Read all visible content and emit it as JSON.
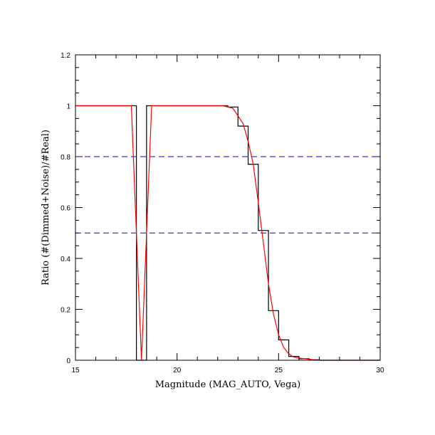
{
  "chart_data": {
    "type": "line",
    "title": "",
    "xlabel": "Magnitude (MAG_AUTO, Vega)",
    "ylabel": "Ratio (#(Dimmed+Noise)/#Real)",
    "xlim": [
      15,
      30
    ],
    "ylim": [
      0,
      1.2
    ],
    "x_ticks": [
      15,
      20,
      25,
      30
    ],
    "x_tick_labels": [
      "15",
      "20",
      "25",
      "30"
    ],
    "y_ticks": [
      0,
      0.2,
      0.4,
      0.6,
      0.8,
      1.0,
      1.2
    ],
    "y_tick_labels": [
      "0",
      "0.2",
      "0.4",
      "0.6",
      "0.8",
      "1",
      "1.2"
    ],
    "grid": false,
    "colors": {
      "histogram": "#000000",
      "fit": "#ff0000",
      "reference": "#0000ff"
    },
    "series": [
      {
        "style": "step",
        "color": "#000000",
        "points": [
          [
            15,
            1.0
          ],
          [
            18.0,
            1.0
          ],
          [
            18.0,
            0.0
          ],
          [
            18.5,
            0.0
          ],
          [
            18.5,
            1.0
          ],
          [
            22.5,
            1.0
          ],
          [
            22.5,
            0.995
          ],
          [
            23.0,
            0.995
          ],
          [
            23.0,
            0.92
          ],
          [
            23.5,
            0.92
          ],
          [
            23.5,
            0.77
          ],
          [
            24.0,
            0.77
          ],
          [
            24.0,
            0.51
          ],
          [
            24.5,
            0.51
          ],
          [
            24.5,
            0.195
          ],
          [
            25.0,
            0.195
          ],
          [
            25.0,
            0.08
          ],
          [
            25.5,
            0.08
          ],
          [
            25.5,
            0.015
          ],
          [
            26.0,
            0.015
          ],
          [
            26.0,
            0.006
          ],
          [
            26.5,
            0.006
          ],
          [
            26.5,
            0.002
          ],
          [
            27.0,
            0.002
          ],
          [
            27.0,
            0.0
          ],
          [
            30,
            0.0
          ]
        ]
      },
      {
        "style": "line",
        "color": "#ff0000",
        "points": [
          [
            15,
            1.0
          ],
          [
            17.75,
            1.0
          ],
          [
            18.25,
            0.0
          ],
          [
            18.75,
            1.0
          ],
          [
            22.25,
            1.0
          ],
          [
            22.75,
            0.99
          ],
          [
            23.25,
            0.93
          ],
          [
            23.5,
            0.86
          ],
          [
            23.75,
            0.77
          ],
          [
            24.0,
            0.62
          ],
          [
            24.25,
            0.46
          ],
          [
            24.5,
            0.3
          ],
          [
            24.75,
            0.18
          ],
          [
            25.0,
            0.1
          ],
          [
            25.25,
            0.05
          ],
          [
            25.5,
            0.025
          ],
          [
            25.75,
            0.012
          ],
          [
            26.25,
            0.006
          ],
          [
            26.75,
            0.002
          ],
          [
            27.25,
            0.0
          ],
          [
            30,
            0.0
          ]
        ]
      }
    ],
    "reference_lines": [
      {
        "y": 0.8,
        "style": "dashed",
        "color": "#0000ff"
      },
      {
        "y": 0.5,
        "style": "dashed",
        "color": "#0000ff"
      }
    ]
  }
}
